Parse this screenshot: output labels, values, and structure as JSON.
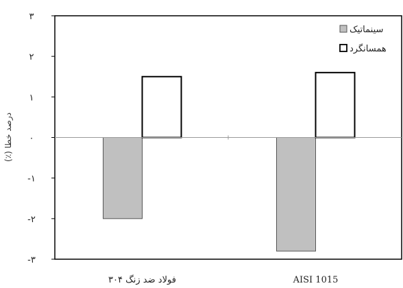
{
  "chart_data": {
    "type": "bar",
    "title": "",
    "ylabel": "درصد خطا (٪)",
    "xlabel": "",
    "categories": [
      "فولاد ضد زنگ ۳۰۴",
      "AISI 1015"
    ],
    "series": [
      {
        "name": "سینماتیک",
        "values": [
          -2.0,
          -2.8
        ],
        "color": "#c0c0c0",
        "stroke": "#555555"
      },
      {
        "name": "همسانگرد",
        "values": [
          1.5,
          1.6
        ],
        "color": "#ffffff",
        "stroke": "#000000"
      }
    ],
    "ylim": [
      -3,
      3
    ],
    "yticks": [
      -3,
      -2,
      -1,
      0,
      1,
      2,
      3
    ],
    "ytick_labels": [
      "-۳",
      "-۲",
      "-۱",
      "۰",
      "۱",
      "۲",
      "۳"
    ],
    "grid": false,
    "legend_position": "top-right"
  }
}
